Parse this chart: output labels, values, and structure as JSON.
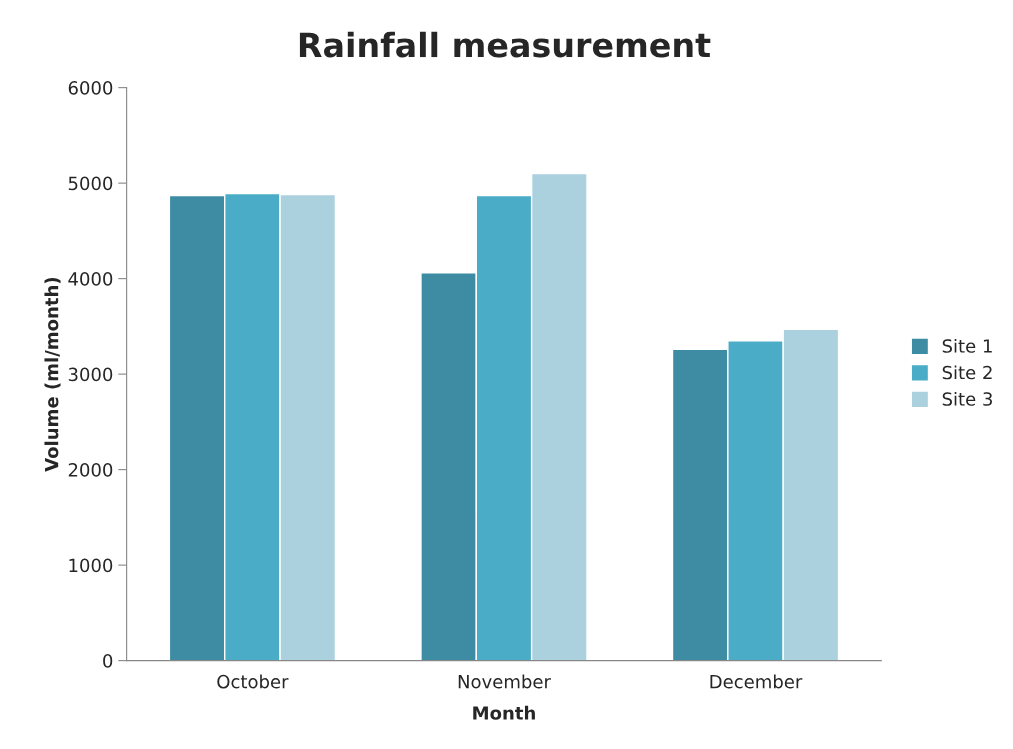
{
  "chart_data": {
    "type": "bar",
    "title": "Rainfall measurement",
    "xlabel": "Month",
    "ylabel": "Volume (ml/month)",
    "categories": [
      "October",
      "November",
      "December"
    ],
    "series": [
      {
        "name": "Site 1",
        "color": "#3d8ca3",
        "values": [
          4870,
          4060,
          3260
        ]
      },
      {
        "name": "Site 2",
        "color": "#4aacc6",
        "values": [
          4890,
          4870,
          3350
        ]
      },
      {
        "name": "Site 3",
        "color": "#abd0de",
        "values": [
          4880,
          5100,
          3470
        ]
      }
    ],
    "ylim": [
      0,
      6000
    ],
    "yticks": [
      0,
      1000,
      2000,
      3000,
      4000,
      5000,
      6000
    ],
    "grid": false,
    "legend": "right"
  }
}
